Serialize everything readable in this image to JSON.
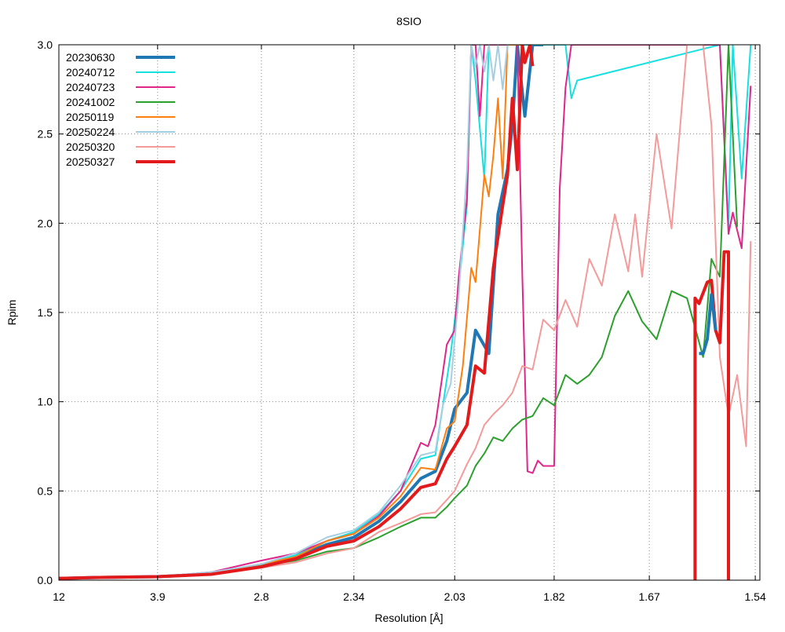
{
  "chart_data": {
    "type": "line",
    "title": "8SIO",
    "xlabel": "Resolution [Å]",
    "ylabel": "Rpim",
    "x_scale": "1/d^2",
    "xlim": [
      12,
      1.535
    ],
    "ylim": [
      0,
      3.0
    ],
    "grid": true,
    "legend_position": "top-left",
    "x_ticks": [
      {
        "label": "12",
        "value": 12
      },
      {
        "label": "3.9",
        "value": 3.9
      },
      {
        "label": "2.8",
        "value": 2.8
      },
      {
        "label": "2.34",
        "value": 2.34
      },
      {
        "label": "2.03",
        "value": 2.03
      },
      {
        "label": "1.82",
        "value": 1.82
      },
      {
        "label": "1.67",
        "value": 1.67
      },
      {
        "label": "1.54",
        "value": 1.54
      }
    ],
    "y_ticks": [
      "0.0",
      "0.5",
      "1.0",
      "1.5",
      "2.0",
      "2.5",
      "3.0"
    ],
    "series": [
      {
        "name": "20230630",
        "color": "#1f77b4",
        "width": 4,
        "x": [
          12,
          6,
          3.9,
          3.2,
          2.8,
          2.6,
          2.45,
          2.34,
          2.25,
          2.18,
          2.12,
          2.08,
          2.05,
          2.03,
          2.0,
          1.98,
          1.95,
          1.93,
          1.91,
          1.9,
          1.89,
          1.875,
          1.86,
          1.85,
          1.84
        ],
        "y": [
          0.01,
          0.015,
          0.02,
          0.035,
          0.08,
          0.13,
          0.2,
          0.24,
          0.33,
          0.44,
          0.57,
          0.61,
          0.78,
          0.96,
          1.05,
          1.4,
          1.27,
          2.05,
          2.3,
          2.55,
          3.0,
          2.6,
          3.0,
          3.0,
          3.0
        ]
      },
      {
        "name": "20240712",
        "color": "#17e0e0",
        "width": 2,
        "x": [
          12,
          6,
          3.9,
          3.2,
          2.8,
          2.6,
          2.45,
          2.34,
          2.25,
          2.18,
          2.12,
          2.08,
          2.06,
          2.04,
          2.02,
          2.0,
          1.99,
          1.98,
          1.96,
          1.95,
          1.94,
          1.8,
          1.79,
          1.78,
          1.58,
          1.57,
          1.565,
          1.555,
          1.545
        ],
        "y": [
          0.01,
          0.015,
          0.02,
          0.04,
          0.09,
          0.14,
          0.22,
          0.27,
          0.37,
          0.5,
          0.68,
          0.7,
          0.98,
          1.27,
          1.65,
          2.1,
          3.0,
          2.8,
          2.25,
          3.0,
          3.0,
          3.0,
          2.7,
          2.8,
          3.0,
          1.98,
          3.0,
          2.25,
          3.0
        ]
      },
      {
        "name": "20240723",
        "color": "#e0258b",
        "width": 2,
        "x": [
          12,
          6,
          3.9,
          3.2,
          2.8,
          2.6,
          2.45,
          2.34,
          2.25,
          2.18,
          2.12,
          2.1,
          2.08,
          2.05,
          2.03,
          2.02,
          2.0,
          1.99,
          1.98,
          1.97,
          1.96,
          1.95,
          1.94,
          1.9,
          1.89,
          1.88,
          1.87,
          1.86,
          1.85,
          1.84,
          1.83,
          1.82,
          1.81,
          1.8,
          1.79,
          1.58,
          1.57,
          1.565,
          1.555,
          1.545
        ],
        "y": [
          0.01,
          0.015,
          0.02,
          0.045,
          0.11,
          0.15,
          0.22,
          0.26,
          0.36,
          0.5,
          0.77,
          0.75,
          0.87,
          1.32,
          1.4,
          1.7,
          2.14,
          3.0,
          3.0,
          2.6,
          3.0,
          3.0,
          3.0,
          3.0,
          3.0,
          1.7,
          0.61,
          0.6,
          0.67,
          0.64,
          0.64,
          0.64,
          2.2,
          2.76,
          3.0,
          3.0,
          1.94,
          2.06,
          1.86,
          2.77
        ]
      },
      {
        "name": "20241002",
        "color": "#2ca02c",
        "width": 2,
        "x": [
          12,
          6,
          3.9,
          3.2,
          2.8,
          2.6,
          2.45,
          2.34,
          2.25,
          2.18,
          2.12,
          2.08,
          2.05,
          2.03,
          2.0,
          1.98,
          1.96,
          1.94,
          1.92,
          1.9,
          1.88,
          1.86,
          1.84,
          1.82,
          1.8,
          1.78,
          1.76,
          1.74,
          1.72,
          1.7,
          1.68,
          1.66,
          1.64,
          1.62,
          1.6,
          1.59,
          1.58,
          1.57,
          1.56
        ],
        "y": [
          0.01,
          0.015,
          0.02,
          0.035,
          0.08,
          0.11,
          0.16,
          0.18,
          0.24,
          0.3,
          0.35,
          0.35,
          0.41,
          0.46,
          0.53,
          0.64,
          0.71,
          0.8,
          0.78,
          0.85,
          0.9,
          0.92,
          1.02,
          0.98,
          1.15,
          1.1,
          1.15,
          1.25,
          1.48,
          1.62,
          1.45,
          1.35,
          1.62,
          1.58,
          1.25,
          1.8,
          1.7,
          3.0,
          1.98
        ]
      },
      {
        "name": "20250119",
        "color": "#ff7f0e",
        "width": 2,
        "x": [
          12,
          6,
          3.9,
          3.2,
          2.8,
          2.6,
          2.45,
          2.34,
          2.25,
          2.18,
          2.12,
          2.08,
          2.05,
          2.03,
          2.01,
          1.99,
          1.98,
          1.96,
          1.95,
          1.94,
          1.93,
          1.92,
          1.91,
          1.9,
          1.89,
          1.88
        ],
        "y": [
          0.01,
          0.015,
          0.02,
          0.04,
          0.09,
          0.13,
          0.22,
          0.26,
          0.35,
          0.47,
          0.63,
          0.62,
          0.85,
          0.89,
          1.2,
          1.75,
          1.67,
          2.27,
          2.15,
          2.38,
          2.7,
          2.25,
          3.0,
          3.0,
          3.0,
          3.0
        ]
      },
      {
        "name": "20250224",
        "color": "#a6cee3",
        "width": 2,
        "x": [
          12,
          6,
          3.9,
          3.2,
          2.8,
          2.6,
          2.45,
          2.34,
          2.25,
          2.18,
          2.12,
          2.08,
          2.06,
          2.04,
          2.02,
          2.0,
          1.99,
          1.98,
          1.97,
          1.96,
          1.95,
          1.94,
          1.93,
          1.92,
          1.91
        ],
        "y": [
          0.01,
          0.015,
          0.02,
          0.045,
          0.09,
          0.15,
          0.24,
          0.28,
          0.38,
          0.53,
          0.7,
          0.72,
          0.98,
          1.1,
          1.6,
          2.3,
          3.0,
          2.88,
          3.0,
          2.85,
          3.0,
          2.8,
          3.0,
          2.75,
          3.0
        ]
      },
      {
        "name": "20250320",
        "color": "#f59a9a",
        "width": 2,
        "x": [
          12,
          6,
          3.9,
          3.2,
          2.8,
          2.6,
          2.45,
          2.34,
          2.25,
          2.18,
          2.12,
          2.08,
          2.05,
          2.03,
          2.0,
          1.98,
          1.96,
          1.94,
          1.92,
          1.9,
          1.88,
          1.86,
          1.84,
          1.82,
          1.8,
          1.78,
          1.76,
          1.74,
          1.72,
          1.7,
          1.69,
          1.68,
          1.67,
          1.66,
          1.64,
          1.62,
          1.6,
          1.59,
          1.58,
          1.57,
          1.56,
          1.55,
          1.545
        ],
        "y": [
          0.01,
          0.015,
          0.02,
          0.03,
          0.07,
          0.1,
          0.15,
          0.18,
          0.27,
          0.32,
          0.37,
          0.38,
          0.45,
          0.5,
          0.65,
          0.74,
          0.87,
          0.93,
          0.98,
          1.05,
          1.2,
          1.18,
          1.46,
          1.4,
          1.57,
          1.42,
          1.8,
          1.65,
          2.05,
          1.73,
          2.05,
          1.7,
          2.1,
          2.5,
          1.97,
          3.0,
          3.0,
          2.55,
          1.25,
          0.92,
          1.15,
          0.75,
          1.9
        ]
      },
      {
        "name": "20250327",
        "color": "#e31a1c",
        "width": 4,
        "x": [
          12,
          6,
          3.9,
          3.2,
          2.8,
          2.6,
          2.45,
          2.34,
          2.25,
          2.18,
          2.12,
          2.08,
          2.05,
          2.03,
          2.0,
          1.98,
          1.96,
          1.94,
          1.92,
          1.91,
          1.9,
          1.89,
          1.88,
          1.875,
          1.865,
          1.86
        ],
        "y": [
          0.01,
          0.015,
          0.02,
          0.033,
          0.075,
          0.12,
          0.19,
          0.22,
          0.3,
          0.4,
          0.52,
          0.54,
          0.68,
          0.75,
          0.87,
          1.2,
          1.16,
          1.75,
          2.1,
          2.27,
          2.7,
          2.3,
          3.0,
          2.9,
          3.0,
          2.88
        ]
      }
    ],
    "extra_segments": [
      {
        "series": "20250327",
        "color": "#e31a1c",
        "width": 4,
        "x": [
          1.61,
          1.61,
          1.605,
          1.595,
          1.59,
          1.585,
          1.58,
          1.575,
          1.57,
          1.57
        ],
        "y": [
          0.0,
          1.58,
          1.55,
          1.67,
          1.68,
          1.4,
          1.33,
          1.84,
          1.84,
          0.0
        ]
      },
      {
        "series": "20230630",
        "color": "#1f77b4",
        "width": 4,
        "x": [
          1.605,
          1.6,
          1.595,
          1.59,
          1.585
        ],
        "y": [
          1.27,
          1.27,
          1.35,
          1.6,
          1.4
        ]
      }
    ]
  }
}
